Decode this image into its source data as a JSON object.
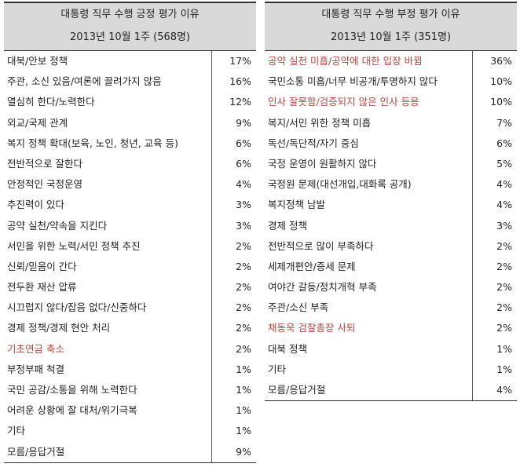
{
  "left": {
    "title": "대통령 직무 수행 긍정 평가 이유",
    "subtitle": "2013년 10월 1주 (568명)",
    "rows": [
      [
        "대북/안보 정책",
        "17%"
      ],
      [
        "주관, 소신 있음/여론에 끌려가지 않음",
        "16%"
      ],
      [
        "열심히 한다/노력한다",
        "12%"
      ],
      [
        "외교/국제 관계",
        "9%"
      ],
      [
        "복지 정책 확대(보육, 노인, 청년, 교육 등)",
        "6%"
      ],
      [
        "전반적으로 잘한다",
        "6%"
      ],
      [
        "안정적인 국정운영",
        "4%"
      ],
      [
        "추진력이 있다",
        "3%"
      ],
      [
        "공약 실천/약속을 지킨다",
        "3%"
      ],
      [
        "서민을 위한 노력/서민 정책 추진",
        "2%"
      ],
      [
        "신뢰/믿음이 간다",
        "2%"
      ],
      [
        "전두환 재산 압류",
        "2%"
      ],
      [
        "시끄럽지 않다/잡음 없다/신중하다",
        "2%"
      ],
      [
        "경제 정책/경제 현안 처리",
        "2%"
      ],
      [
        "기초연금 축소",
        "2%"
      ],
      [
        "부정부패 척결",
        "1%"
      ],
      [
        "국민 공감/소통을 위해 노력한다",
        "1%"
      ],
      [
        "어려운 상황에 잘 대처/위기극복",
        "1%"
      ],
      [
        "기타",
        "1%"
      ],
      [
        "모름/응답거절",
        "9%"
      ]
    ],
    "highlighted_rows": [
      14
    ]
  },
  "right": {
    "title": "대통령 직무 수행 부정 평가 이유",
    "subtitle": "2013년 10월 1주 (351명)",
    "rows": [
      [
        "공약 실천 미흡/공약에 대한 입장 바뀜",
        "36%"
      ],
      [
        "국민소통 미흡/너무 비공개/투명하지 않다",
        "10%"
      ],
      [
        "인사 잘못함/검증되지 않은 인사 등용",
        "10%"
      ],
      [
        "복지/서민 위한 정책 미흡",
        "7%"
      ],
      [
        "독선/독단적/자기 중심",
        "6%"
      ],
      [
        "국정 운영이 원활하지 않다",
        "5%"
      ],
      [
        "국정원 문제(대선개입,대화록 공개)",
        "4%"
      ],
      [
        "복지정책 남발",
        "4%"
      ],
      [
        "경제 정책",
        "3%"
      ],
      [
        "전반적으로 많이 부족하다",
        "2%"
      ],
      [
        "세제개편안/증세 문제",
        "2%"
      ],
      [
        "여야간 갈등/정치개혁 부족",
        "2%"
      ],
      [
        "주관/소신 부족",
        "2%"
      ],
      [
        "채동욱 검찰총장 사퇴",
        "2%"
      ],
      [
        "대북 정책",
        "1%"
      ],
      [
        "기타",
        "1%"
      ],
      [
        "모름/응답거절",
        "4%"
      ]
    ],
    "highlighted_rows": [
      0,
      2,
      13
    ]
  }
}
